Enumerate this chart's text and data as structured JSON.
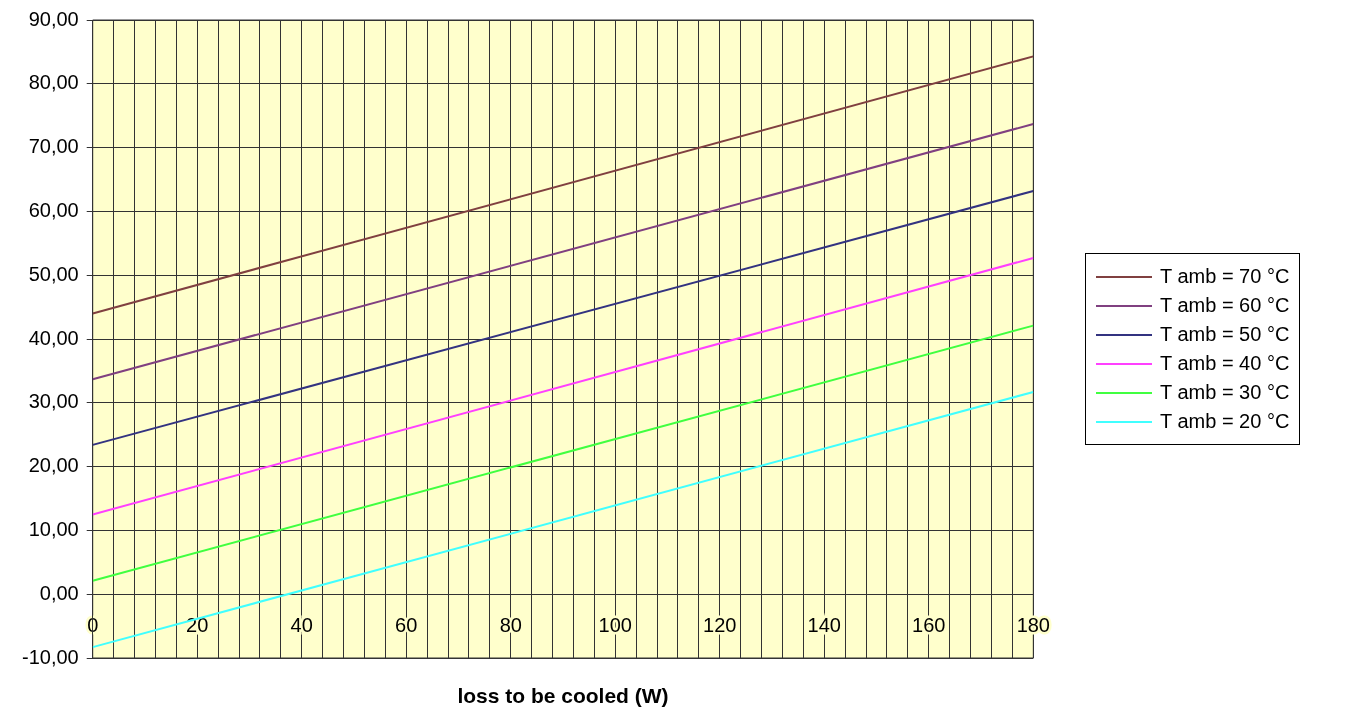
{
  "chart_data": {
    "type": "line",
    "xlabel": "loss to be cooled (W)",
    "x": [
      0,
      180
    ],
    "series": [
      {
        "name": "T amb = 70 °C",
        "color": "#804040",
        "values": [
          44.0,
          84.3
        ]
      },
      {
        "name": "T amb = 60 °C",
        "color": "#804080",
        "values": [
          33.7,
          73.7
        ]
      },
      {
        "name": "T amb = 50 °C",
        "color": "#333380",
        "values": [
          23.4,
          63.2
        ]
      },
      {
        "name": "T amb = 40 °C",
        "color": "#ff40ff",
        "values": [
          12.5,
          52.7
        ]
      },
      {
        "name": "T amb = 30 °C",
        "color": "#40ff40",
        "values": [
          2.1,
          42.1
        ]
      },
      {
        "name": "T amb = 20 °C",
        "color": "#40ffff",
        "values": [
          -8.3,
          31.7
        ]
      }
    ],
    "xlim": [
      0,
      180
    ],
    "xticks": [
      0,
      {
        "value": 4,
        "label": null
      },
      {
        "value": 8,
        "label": null
      },
      {
        "value": 12,
        "label": null
      },
      {
        "value": 16,
        "label": null
      },
      20,
      {
        "value": 24,
        "label": null
      },
      {
        "value": 28,
        "label": null
      },
      {
        "value": 32,
        "label": null
      },
      {
        "value": 36,
        "label": null
      },
      40,
      {
        "value": 44,
        "label": null
      },
      {
        "value": 48,
        "label": null
      },
      {
        "value": 52,
        "label": null
      },
      {
        "value": 56,
        "label": null
      },
      60,
      {
        "value": 64,
        "label": null
      },
      {
        "value": 68,
        "label": null
      },
      {
        "value": 72,
        "label": null
      },
      {
        "value": 76,
        "label": null
      },
      80,
      {
        "value": 84,
        "label": null
      },
      {
        "value": 88,
        "label": null
      },
      {
        "value": 92,
        "label": null
      },
      {
        "value": 96,
        "label": null
      },
      100,
      {
        "value": 104,
        "label": null
      },
      {
        "value": 108,
        "label": null
      },
      {
        "value": 112,
        "label": null
      },
      {
        "value": 116,
        "label": null
      },
      120,
      {
        "value": 124,
        "label": null
      },
      {
        "value": 128,
        "label": null
      },
      {
        "value": 132,
        "label": null
      },
      {
        "value": 136,
        "label": null
      },
      140,
      {
        "value": 144,
        "label": null
      },
      {
        "value": 148,
        "label": null
      },
      {
        "value": 152,
        "label": null
      },
      {
        "value": 156,
        "label": null
      },
      160,
      {
        "value": 164,
        "label": null
      },
      {
        "value": 168,
        "label": null
      },
      {
        "value": 172,
        "label": null
      },
      {
        "value": 176,
        "label": null
      },
      180
    ],
    "ylim": [
      -10,
      90
    ],
    "yticks": [
      {
        "value": -10,
        "label": "-10,00"
      },
      {
        "value": 0,
        "label": "0,00"
      },
      {
        "value": 10,
        "label": "10,00"
      },
      {
        "value": 20,
        "label": "20,00"
      },
      {
        "value": 30,
        "label": "30,00"
      },
      {
        "value": 40,
        "label": "40,00"
      },
      {
        "value": 50,
        "label": "50,00"
      },
      {
        "value": 60,
        "label": "60,00"
      },
      {
        "value": 70,
        "label": "70,00"
      },
      {
        "value": 80,
        "label": "80,00"
      },
      {
        "value": 90,
        "label": "90,00"
      }
    ],
    "grid": true,
    "legend": "right",
    "marker": "none",
    "line_style": "solid"
  }
}
